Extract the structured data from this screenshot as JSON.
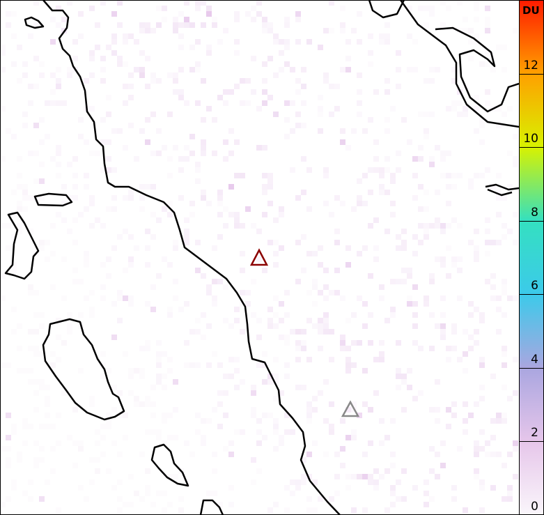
{
  "colorbar": {
    "unit": "DU",
    "ticks": [
      "0",
      "2",
      "4",
      "6",
      "8",
      "10",
      "12"
    ],
    "range": [
      0,
      14
    ],
    "colors": {
      "0": "#faf6fb",
      "2": "#e6c6ea",
      "4": "#aaa6e0",
      "6": "#3ccaea",
      "8": "#34e0c0",
      "10": "#d8f200",
      "12": "#ffa000",
      "14": "#ff1a00"
    }
  },
  "markers": [
    {
      "name": "primary-volcano",
      "color": "#8b0000"
    },
    {
      "name": "secondary-volcano",
      "color": "#888888"
    }
  ],
  "background_color": "#ffffff",
  "coastline_color": "#000000",
  "pixel_noise_color": "#d8a8e0"
}
